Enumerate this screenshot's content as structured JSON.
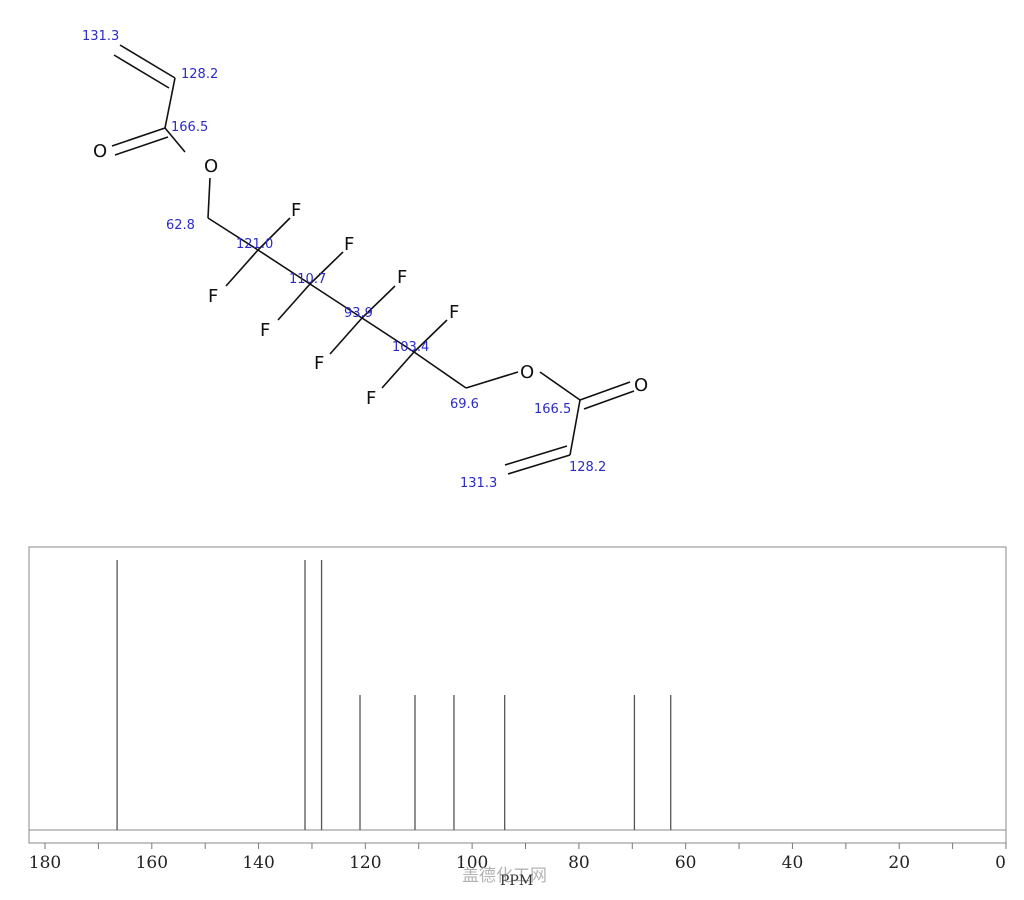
{
  "structure": {
    "atoms": {
      "O": "O",
      "F": "F"
    },
    "shift_labels": {
      "top_vinyl_terminal": "131.3",
      "top_vinyl_alpha": "128.2",
      "top_carbonyl": "166.5",
      "ch2_left": "62.8",
      "cf2_1": "121.0",
      "cf2_2": "110.7",
      "cf2_3": "93.9",
      "cf2_4": "103.4",
      "ch2_right": "69.6",
      "bottom_carbonyl": "166.5",
      "bottom_vinyl_alpha": "128.2",
      "bottom_vinyl_terminal": "131.3"
    }
  },
  "chart_data": {
    "type": "bar",
    "xlabel": "PPM",
    "xlim": [
      183,
      0
    ],
    "reversed_x": true,
    "x_ticks": [
      180,
      160,
      140,
      120,
      100,
      80,
      60,
      40,
      20,
      0
    ],
    "peaks": [
      {
        "ppm": 166.5,
        "intensity": 1.0
      },
      {
        "ppm": 131.3,
        "intensity": 1.0
      },
      {
        "ppm": 128.2,
        "intensity": 1.0
      },
      {
        "ppm": 121.0,
        "intensity": 0.5
      },
      {
        "ppm": 110.7,
        "intensity": 0.5
      },
      {
        "ppm": 103.4,
        "intensity": 0.5
      },
      {
        "ppm": 93.9,
        "intensity": 0.5
      },
      {
        "ppm": 69.6,
        "intensity": 0.5
      },
      {
        "ppm": 62.8,
        "intensity": 0.5
      }
    ],
    "grid": false
  },
  "watermark": "盖德化工网"
}
